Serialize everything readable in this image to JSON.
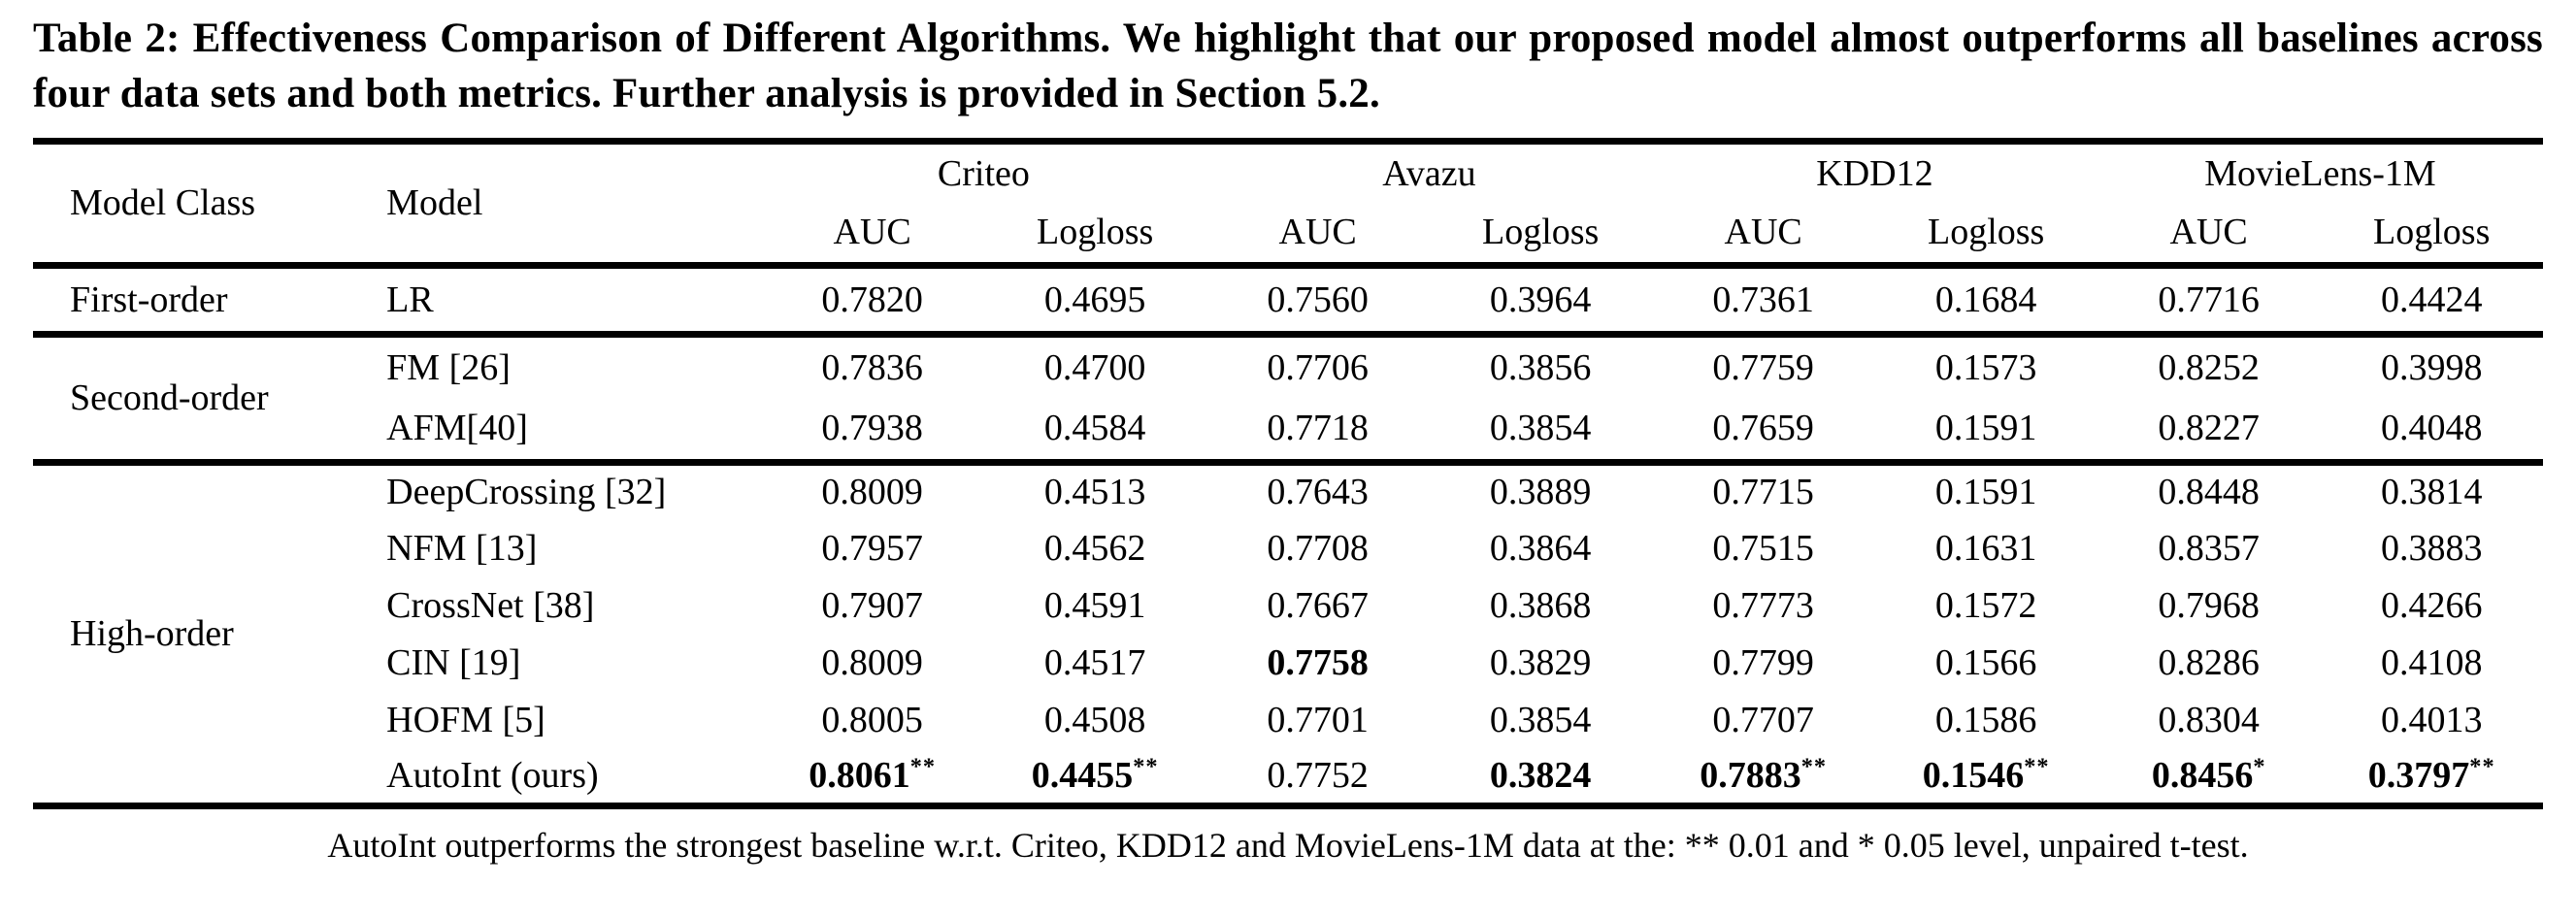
{
  "caption": "Table 2: Effectiveness Comparison of Different Algorithms. We highlight that our proposed model almost outperforms all baselines across four data sets and both metrics. Further analysis is provided in Section 5.2.",
  "table": {
    "columns": {
      "model_class": "Model Class",
      "model": "Model",
      "datasets": [
        "Criteo",
        "Avazu",
        "KDD12",
        "MovieLens-1M"
      ],
      "metrics": [
        "AUC",
        "Logloss"
      ]
    },
    "groups": [
      {
        "model_class": "First-order",
        "rows": [
          {
            "model": "LR",
            "values": [
              {
                "v": "0.7820"
              },
              {
                "v": "0.4695"
              },
              {
                "v": "0.7560"
              },
              {
                "v": "0.3964"
              },
              {
                "v": "0.7361"
              },
              {
                "v": "0.1684"
              },
              {
                "v": "0.7716"
              },
              {
                "v": "0.4424"
              }
            ]
          }
        ]
      },
      {
        "model_class": "Second-order",
        "rows": [
          {
            "model": "FM [26]",
            "values": [
              {
                "v": "0.7836"
              },
              {
                "v": "0.4700"
              },
              {
                "v": "0.7706"
              },
              {
                "v": "0.3856"
              },
              {
                "v": "0.7759"
              },
              {
                "v": "0.1573"
              },
              {
                "v": "0.8252"
              },
              {
                "v": "0.3998"
              }
            ]
          },
          {
            "model": "AFM[40]",
            "values": [
              {
                "v": "0.7938"
              },
              {
                "v": "0.4584"
              },
              {
                "v": "0.7718"
              },
              {
                "v": "0.3854"
              },
              {
                "v": "0.7659"
              },
              {
                "v": "0.1591"
              },
              {
                "v": "0.8227"
              },
              {
                "v": "0.4048"
              }
            ]
          }
        ]
      },
      {
        "model_class": "High-order",
        "rows": [
          {
            "model": "DeepCrossing [32]",
            "values": [
              {
                "v": "0.8009"
              },
              {
                "v": "0.4513"
              },
              {
                "v": "0.7643"
              },
              {
                "v": "0.3889"
              },
              {
                "v": "0.7715"
              },
              {
                "v": "0.1591"
              },
              {
                "v": "0.8448"
              },
              {
                "v": "0.3814"
              }
            ]
          },
          {
            "model": "NFM [13]",
            "values": [
              {
                "v": "0.7957"
              },
              {
                "v": "0.4562"
              },
              {
                "v": "0.7708"
              },
              {
                "v": "0.3864"
              },
              {
                "v": "0.7515"
              },
              {
                "v": "0.1631"
              },
              {
                "v": "0.8357"
              },
              {
                "v": "0.3883"
              }
            ]
          },
          {
            "model": "CrossNet [38]",
            "values": [
              {
                "v": "0.7907"
              },
              {
                "v": "0.4591"
              },
              {
                "v": "0.7667"
              },
              {
                "v": "0.3868"
              },
              {
                "v": "0.7773"
              },
              {
                "v": "0.1572"
              },
              {
                "v": "0.7968"
              },
              {
                "v": "0.4266"
              }
            ]
          },
          {
            "model": "CIN [19]",
            "values": [
              {
                "v": "0.8009"
              },
              {
                "v": "0.4517"
              },
              {
                "v": "0.7758",
                "b": true
              },
              {
                "v": "0.3829"
              },
              {
                "v": "0.7799"
              },
              {
                "v": "0.1566"
              },
              {
                "v": "0.8286"
              },
              {
                "v": "0.4108"
              }
            ]
          },
          {
            "model": "HOFM [5]",
            "values": [
              {
                "v": "0.8005"
              },
              {
                "v": "0.4508"
              },
              {
                "v": "0.7701"
              },
              {
                "v": "0.3854"
              },
              {
                "v": "0.7707"
              },
              {
                "v": "0.1586"
              },
              {
                "v": "0.8304"
              },
              {
                "v": "0.4013"
              }
            ]
          },
          {
            "model": "AutoInt (ours)",
            "values": [
              {
                "v": "0.8061",
                "b": true,
                "sup": "**"
              },
              {
                "v": "0.4455",
                "b": true,
                "sup": "**"
              },
              {
                "v": "0.7752"
              },
              {
                "v": "0.3824",
                "b": true
              },
              {
                "v": "0.7883",
                "b": true,
                "sup": "**"
              },
              {
                "v": "0.1546",
                "b": true,
                "sup": "**"
              },
              {
                "v": "0.8456",
                "b": true,
                "sup": "*"
              },
              {
                "v": "0.3797",
                "b": true,
                "sup": "**"
              }
            ]
          }
        ]
      }
    ]
  },
  "footnote": "AutoInt outperforms the strongest baseline w.r.t. Criteo, KDD12 and MovieLens-1M data at the: ** 0.01 and * 0.05 level, unpaired t-test."
}
